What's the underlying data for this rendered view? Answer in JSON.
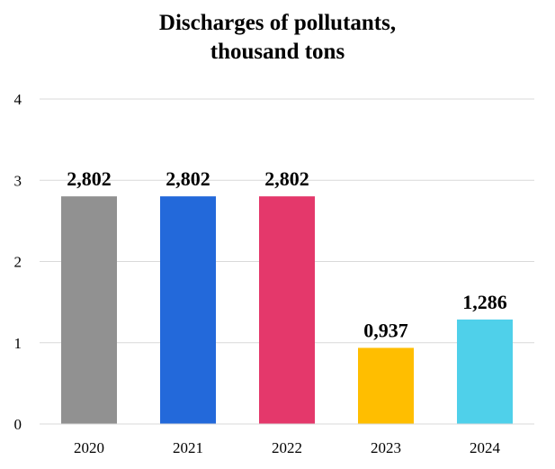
{
  "chart_data": {
    "type": "bar",
    "title_lines": [
      "Discharges of pollutants,",
      "thousand tons"
    ],
    "categories": [
      "2020",
      "2021",
      "2022",
      "2023",
      "2024"
    ],
    "values": [
      2.802,
      2.802,
      2.802,
      0.937,
      1.286
    ],
    "value_labels": [
      "2,802",
      "2,802",
      "2,802",
      "0,937",
      "1,286"
    ],
    "bar_colors": [
      "#919191",
      "#2369da",
      "#e4386b",
      "#ffbe00",
      "#4fd0ea"
    ],
    "ylim": [
      0,
      4
    ],
    "yticks": [
      "0",
      "1",
      "2",
      "3",
      "4"
    ],
    "grid": true,
    "legend": "none"
  }
}
